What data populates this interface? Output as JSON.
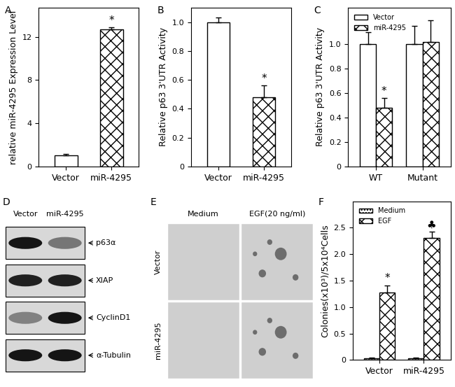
{
  "chart_data": [
    {
      "type": "bar",
      "panel": "A",
      "ylabel": "relative miR-4295 Expression Level",
      "categories": [
        "Vector",
        "miR-4295"
      ],
      "values": [
        1.0,
        12.7
      ],
      "errors": [
        0.15,
        0.2
      ],
      "colors": [
        "#ffffff",
        "#ffffff"
      ],
      "ylim": [
        0,
        14.7
      ],
      "yticks": [
        0,
        4,
        8,
        12
      ],
      "annotations": [
        {
          "text": "*",
          "category": "miR-4295"
        }
      ]
    },
    {
      "type": "bar",
      "panel": "B",
      "ylabel": "Relative p63 3'UTR Activity",
      "categories": [
        "Vector",
        "miR-4295"
      ],
      "values": [
        1.0,
        0.48
      ],
      "errors": [
        0.03,
        0.08
      ],
      "colors": [
        "#ffffff",
        "#ffffff"
      ],
      "ylim": [
        0,
        1.1
      ],
      "yticks": [
        0,
        0.2,
        0.4,
        0.6,
        0.8,
        1.0
      ],
      "annotations": [
        {
          "text": "*",
          "category": "miR-4295"
        }
      ]
    },
    {
      "type": "bar",
      "panel": "C",
      "ylabel": "Relative p63 3'UTR Activity",
      "categories": [
        "WT",
        "Mutant"
      ],
      "legend": "upper left",
      "series": [
        {
          "name": "Vector",
          "color": "#ffffff",
          "values": [
            1.0,
            1.0
          ],
          "errors": [
            0.1,
            0.15
          ]
        },
        {
          "name": "miR-4295",
          "color": "#ffffff",
          "values": [
            0.48,
            1.02
          ],
          "errors": [
            0.08,
            0.18
          ]
        }
      ],
      "ylim": [
        0,
        1.3
      ],
      "yticks": [
        0,
        0.2,
        0.4,
        0.6,
        0.8,
        1.0
      ],
      "annotations": [
        {
          "text": "*",
          "series": "miR-4295",
          "category": "WT"
        }
      ]
    },
    {
      "type": "bar",
      "panel": "F",
      "ylabel": "Colonies(x10³)/5x10⁴Cells",
      "categories": [
        "Vector",
        "miR-4295"
      ],
      "legend": "upper left",
      "series": [
        {
          "name": "Medium",
          "color": "#ffffff",
          "values": [
            0.03,
            0.03
          ],
          "errors": [
            0.01,
            0.01
          ]
        },
        {
          "name": "EGF",
          "color": "#ffffff",
          "values": [
            1.28,
            2.3
          ],
          "errors": [
            0.13,
            0.12
          ]
        }
      ],
      "ylim": [
        0,
        3.0
      ],
      "yticks": [
        0,
        0.5,
        1.0,
        1.5,
        2.0,
        2.5
      ],
      "annotations": [
        {
          "text": "*",
          "series": "EGF",
          "category": "Vector"
        },
        {
          "text": "♣",
          "series": "EGF",
          "category": "miR-4295"
        }
      ]
    }
  ],
  "blot": {
    "panel": "D",
    "lanes": [
      "Vector",
      "miR-4295"
    ],
    "bands": [
      {
        "label": "p63α",
        "intensity": [
          0.9,
          0.45
        ]
      },
      {
        "label": "XIAP",
        "intensity": [
          0.85,
          0.85
        ]
      },
      {
        "label": "CyclinD1",
        "intensity": [
          0.4,
          0.9
        ]
      },
      {
        "label": "α-Tubulin",
        "intensity": [
          0.9,
          0.9
        ]
      }
    ]
  },
  "colony_images": {
    "panel": "E",
    "columns": [
      "Medium",
      "EGF(20 ng/ml)"
    ],
    "rows": [
      "Vector",
      "miR-4295"
    ]
  }
}
